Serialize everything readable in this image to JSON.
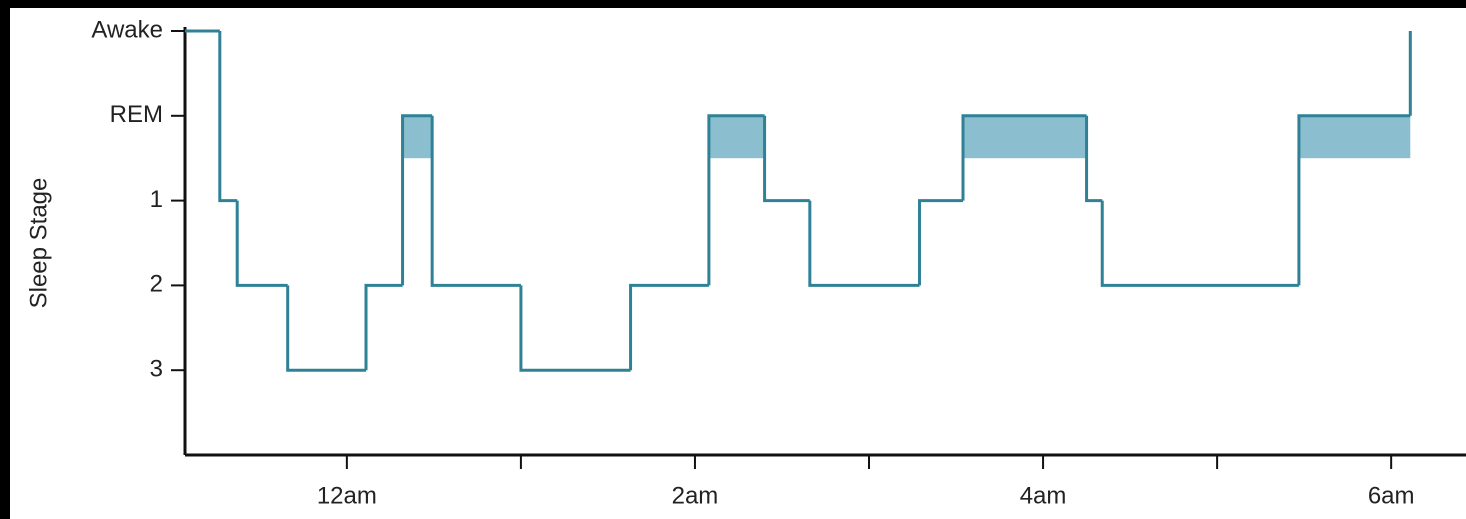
{
  "chart_data": {
    "type": "step",
    "y_label": "Sleep Stage",
    "x": [
      -0.93,
      -0.73,
      -0.63,
      -0.34,
      0.11,
      0.32,
      0.49,
      1.0,
      1.63,
      2.08,
      2.4,
      2.66,
      3.29,
      3.54,
      4.25,
      4.34,
      5.47,
      6.11
    ],
    "values": [
      0,
      2,
      3,
      4,
      3,
      1,
      3,
      4,
      3,
      1,
      2,
      3,
      2,
      1,
      2,
      3,
      1,
      0
    ],
    "color": "#2f8296",
    "shade_value": 1,
    "shade_color": "#8bbfcf",
    "xlim": [
      -0.93,
      6.43
    ],
    "xticks": [
      {
        "value": 0,
        "label": "12am"
      },
      {
        "value": 2,
        "label": "2am"
      },
      {
        "value": 4,
        "label": "4am"
      },
      {
        "value": 6,
        "label": "6am"
      }
    ],
    "xminorticks": [
      1,
      3,
      5
    ],
    "ylim": [
      5,
      0
    ],
    "yticks": [
      {
        "value": 0,
        "label": "Awake"
      },
      {
        "value": 1,
        "label": "REM"
      },
      {
        "value": 2,
        "label": "1"
      },
      {
        "value": 3,
        "label": "2"
      },
      {
        "value": 4,
        "label": "3"
      }
    ]
  }
}
